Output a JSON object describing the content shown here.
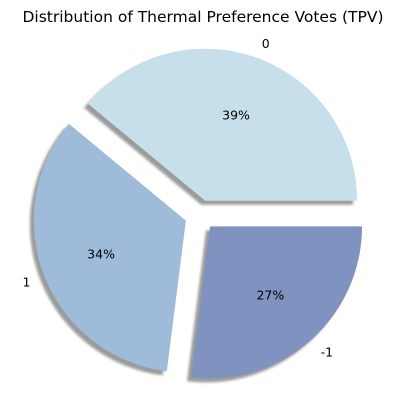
{
  "chart_data": {
    "type": "pie",
    "title": "Distribution of Thermal Preference Votes (TPV)",
    "categories": [
      "0",
      "1",
      "-1"
    ],
    "values": [
      39,
      34,
      27
    ],
    "value_labels": [
      "39%",
      "34%",
      "27%"
    ],
    "colors": [
      "#c6dfeb",
      "#9ebcd9",
      "#7f92c0"
    ],
    "shadow": true,
    "exploded": true,
    "start_angle_deg": 0,
    "direction": "counterclockwise"
  }
}
